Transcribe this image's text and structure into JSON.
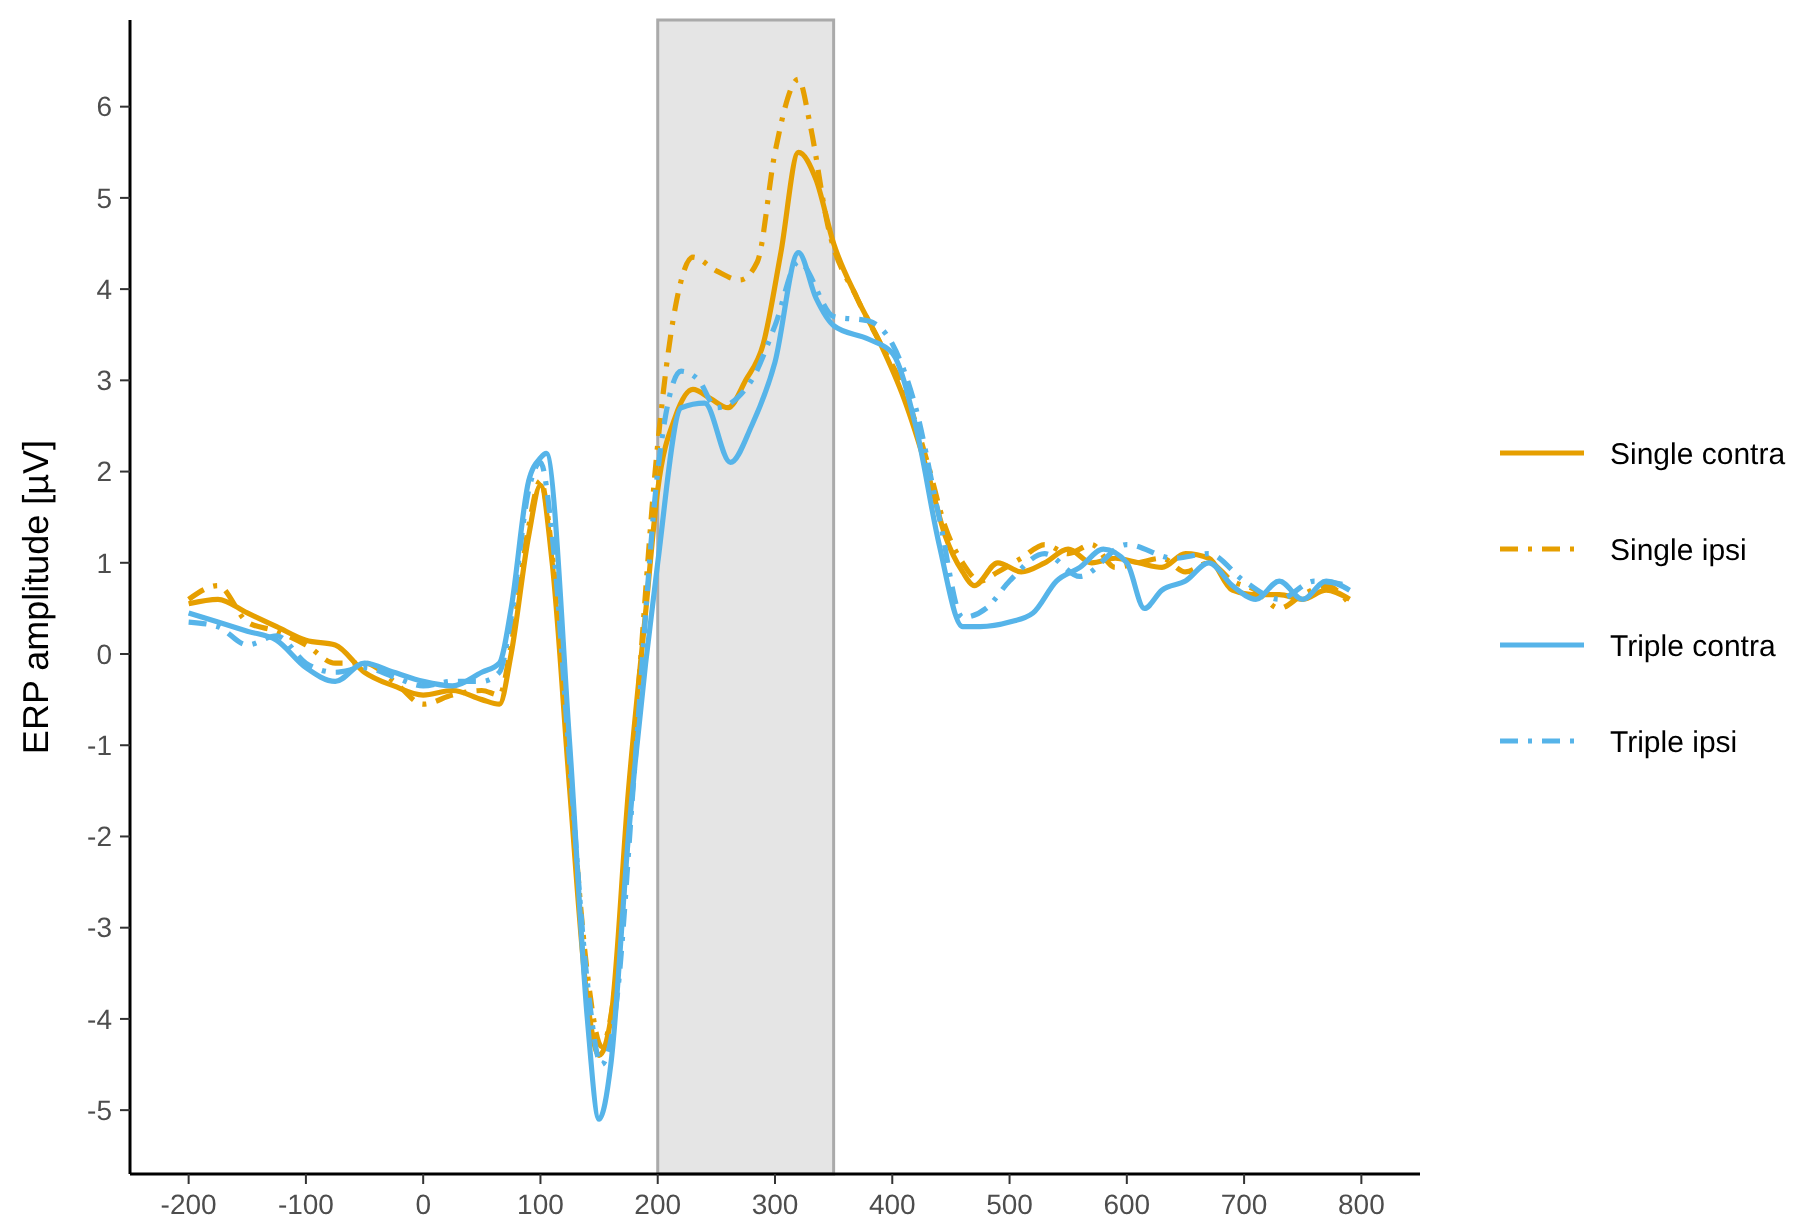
{
  "chart_data": {
    "type": "line",
    "ylabel": "ERP amplitude [µV]",
    "xlim": [
      -250,
      850
    ],
    "ylim": [
      -5.7,
      6.95
    ],
    "xticks": [
      -200,
      -100,
      0,
      100,
      200,
      300,
      400,
      500,
      600,
      700,
      800
    ],
    "yticks": [
      -5,
      -4,
      -3,
      -2,
      -1,
      0,
      1,
      2,
      3,
      4,
      5,
      6
    ],
    "grid": false,
    "legend": "right",
    "bands": [
      {
        "axis": "x",
        "from": 200,
        "to": 350,
        "color": "#e5e5e5"
      }
    ],
    "series": [
      {
        "name": "Single contra",
        "color": "#e69f00",
        "line_style": "solid",
        "x": [
          -200,
          -175,
          -150,
          -125,
          -100,
          -75,
          -50,
          -25,
          0,
          25,
          50,
          65,
          75,
          90,
          100,
          110,
          125,
          140,
          150,
          160,
          175,
          190,
          200,
          215,
          230,
          245,
          260,
          275,
          290,
          305,
          320,
          335,
          350,
          370,
          390,
          410,
          430,
          445,
          460,
          470,
          490,
          510,
          530,
          550,
          570,
          590,
          610,
          630,
          650,
          670,
          690,
          710,
          730,
          750,
          770,
          790
        ],
        "values": [
          0.55,
          0.6,
          0.45,
          0.3,
          0.15,
          0.1,
          -0.2,
          -0.35,
          -0.45,
          -0.4,
          -0.5,
          -0.55,
          0,
          1.3,
          1.85,
          1.0,
          -1.5,
          -3.8,
          -4.4,
          -4.0,
          -1.5,
          0.5,
          1.8,
          2.6,
          2.9,
          2.8,
          2.7,
          3.0,
          3.4,
          4.4,
          5.5,
          5.2,
          4.5,
          3.9,
          3.4,
          2.8,
          2.0,
          1.3,
          0.9,
          0.75,
          1.0,
          0.9,
          1.0,
          1.15,
          1.0,
          1.05,
          1.0,
          0.95,
          1.1,
          1.05,
          0.7,
          0.65,
          0.65,
          0.6,
          0.7,
          0.6
        ]
      },
      {
        "name": "Single ipsi",
        "color": "#e69f00",
        "line_style": "dashed",
        "x": [
          -200,
          -175,
          -150,
          -125,
          -100,
          -75,
          -50,
          -25,
          0,
          25,
          50,
          65,
          75,
          90,
          100,
          110,
          125,
          140,
          152,
          165,
          180,
          200,
          215,
          230,
          250,
          270,
          285,
          300,
          320,
          330,
          345,
          370,
          390,
          410,
          430,
          445,
          460,
          475,
          490,
          510,
          530,
          550,
          570,
          590,
          610,
          630,
          650,
          670,
          690,
          710,
          730,
          750,
          770,
          790
        ],
        "values": [
          0.6,
          0.75,
          0.35,
          0.25,
          0.1,
          -0.1,
          -0.1,
          -0.3,
          -0.55,
          -0.45,
          -0.4,
          -0.45,
          0.1,
          1.4,
          1.9,
          1.1,
          -1.3,
          -3.5,
          -4.3,
          -3.5,
          -1.0,
          2.3,
          3.8,
          4.35,
          4.2,
          4.1,
          4.3,
          5.5,
          6.3,
          5.8,
          4.7,
          3.9,
          3.4,
          2.9,
          2.1,
          1.4,
          1.0,
          0.8,
          0.9,
          1.05,
          1.2,
          1.1,
          1.2,
          0.95,
          1.0,
          1.05,
          0.9,
          1.0,
          0.8,
          0.7,
          0.5,
          0.65,
          0.75,
          0.55
        ]
      },
      {
        "name": "Triple contra",
        "color": "#56b4e9",
        "line_style": "solid",
        "x": [
          -200,
          -175,
          -150,
          -125,
          -100,
          -75,
          -50,
          -25,
          0,
          25,
          50,
          65,
          75,
          90,
          100,
          105,
          125,
          140,
          150,
          160,
          175,
          200,
          220,
          240,
          262,
          280,
          300,
          320,
          335,
          350,
          380,
          400,
          420,
          440,
          460,
          475,
          500,
          520,
          540,
          560,
          580,
          600,
          615,
          630,
          650,
          670,
          690,
          710,
          730,
          750,
          770,
          790
        ],
        "values": [
          0.45,
          0.35,
          0.25,
          0.15,
          -0.15,
          -0.3,
          -0.1,
          -0.2,
          -0.3,
          -0.35,
          -0.2,
          -0.1,
          0.5,
          1.9,
          2.15,
          2.2,
          -1.0,
          -4.0,
          -5.1,
          -4.5,
          -2.0,
          1.0,
          2.7,
          2.75,
          2.1,
          2.5,
          3.2,
          4.4,
          3.9,
          3.6,
          3.45,
          3.3,
          2.5,
          1.2,
          0.3,
          0.3,
          0.35,
          0.45,
          0.8,
          0.95,
          1.15,
          1.0,
          0.5,
          0.7,
          0.8,
          1.0,
          0.75,
          0.6,
          0.8,
          0.6,
          0.8,
          0.7
        ]
      },
      {
        "name": "Triple ipsi",
        "color": "#56b4e9",
        "line_style": "dashed",
        "x": [
          -200,
          -175,
          -150,
          -125,
          -100,
          -75,
          -50,
          -25,
          0,
          25,
          50,
          65,
          75,
          90,
          100,
          110,
          125,
          140,
          152,
          165,
          180,
          200,
          220,
          235,
          250,
          280,
          300,
          320,
          350,
          380,
          400,
          420,
          440,
          460,
          480,
          500,
          530,
          560,
          600,
          640,
          670,
          700,
          730,
          760,
          790
        ],
        "values": [
          0.35,
          0.3,
          0.1,
          0.2,
          -0.1,
          -0.2,
          -0.15,
          -0.25,
          -0.35,
          -0.3,
          -0.3,
          -0.2,
          0.4,
          1.8,
          2.1,
          1.3,
          -1.2,
          -3.6,
          -4.5,
          -3.8,
          -1.3,
          2.0,
          3.1,
          3.0,
          2.7,
          3.0,
          3.6,
          4.3,
          3.7,
          3.65,
          3.4,
          2.7,
          1.5,
          0.4,
          0.5,
          0.8,
          1.1,
          0.85,
          1.2,
          1.05,
          1.1,
          0.8,
          0.6,
          0.8,
          0.75
        ]
      }
    ]
  }
}
